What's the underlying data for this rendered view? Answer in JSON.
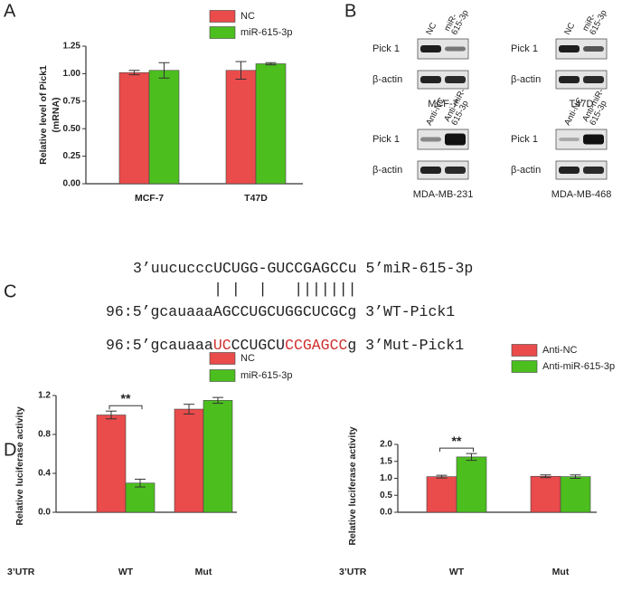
{
  "panel_labels": [
    "A",
    "B",
    "C",
    "D"
  ],
  "chart_data": [
    {
      "type": "bar",
      "ylabel": [
        "Relative level of Pick1",
        "(mRNA)"
      ],
      "categories": [
        "MCF-7",
        "T47D"
      ],
      "series": [
        {
          "name": "NC",
          "color": "#ea4b4b",
          "values": [
            1.01,
            1.03
          ],
          "errors": [
            0.02,
            0.08
          ]
        },
        {
          "name": "miR-615-3p",
          "color": "#4cbf1f",
          "values": [
            1.03,
            1.09
          ],
          "errors": [
            0.07,
            0.01
          ]
        }
      ],
      "ylim": [
        0,
        1.25
      ],
      "yticks": [
        {
          "value": 0,
          "label": "0.00"
        },
        0.25,
        {
          "value": 0.5,
          "label": "0.50"
        },
        0.75,
        {
          "value": 1,
          "label": "1.00"
        },
        1.25
      ]
    },
    {
      "type": "bar",
      "ylabel": [
        "Relative luciferase activity"
      ],
      "xlabel": "3’UTR",
      "categories": [
        "WT",
        "Mut"
      ],
      "significance": [
        "**",
        null
      ],
      "series": [
        {
          "name": "NC",
          "color": "#ea4b4b",
          "values": [
            1.0,
            1.06
          ],
          "errors": [
            0.04,
            0.05
          ]
        },
        {
          "name": "miR-615-3p",
          "color": "#4cbf1f",
          "values": [
            0.3,
            1.15
          ],
          "errors": [
            0.04,
            0.03
          ]
        }
      ],
      "ylim": [
        0,
        1.2
      ],
      "yticks": [
        {
          "value": 0,
          "label": "0.0"
        },
        0.4,
        0.8,
        1.2
      ]
    },
    {
      "type": "bar",
      "ylabel": [
        "Relative luciferase activity"
      ],
      "xlabel": "3’UTR",
      "categories": [
        "WT",
        "Mut"
      ],
      "significance": [
        "**",
        null
      ],
      "series": [
        {
          "name": "Anti-NC",
          "color": "#ea4b4b",
          "values": [
            1.05,
            1.06
          ],
          "errors": [
            0.04,
            0.04
          ]
        },
        {
          "name": "Anti-miR-615-3p",
          "color": "#4cbf1f",
          "values": [
            1.63,
            1.05
          ],
          "errors": [
            0.1,
            0.05
          ]
        }
      ],
      "ylim": [
        0,
        2
      ],
      "yticks": [
        {
          "value": 0,
          "label": "0.0"
        },
        0.5,
        {
          "value": 1,
          "label": "1.0"
        },
        1.5,
        {
          "value": 2,
          "label": "2.0"
        }
      ]
    }
  ],
  "panel_b": {
    "blots": [
      {
        "lanes": [
          [
            "NC"
          ],
          [
            "miR-",
            "615-3p"
          ]
        ],
        "rows": [
          "Pick 1",
          "β-actin"
        ],
        "cell": "MCF-7"
      },
      {
        "lanes": [
          [
            "NC"
          ],
          [
            "miR-",
            "615-3p"
          ]
        ],
        "rows": [
          "Pick 1",
          "β-actin"
        ],
        "cell": "T47D"
      },
      {
        "lanes": [
          [
            "Anti-NC"
          ],
          [
            "Anti-miR-",
            "615-3p"
          ]
        ],
        "rows": [
          "Pick 1",
          "β-actin"
        ],
        "cell": "MDA-MB-231"
      },
      {
        "lanes": [
          [
            "Anti-NC"
          ],
          [
            "Anti-miR-",
            "615-3p"
          ]
        ],
        "rows": [
          "Pick 1",
          "β-actin"
        ],
        "cell": "MDA-MB-468"
      }
    ]
  },
  "panel_c": {
    "lines": [
      [
        {
          "text": "3’uucucccUCUGG-GUCCGAGCCu 5’miR-615-3p"
        }
      ],
      [
        {
          "text": "         | |  |   |||||||"
        }
      ],
      [
        {
          "text": "96:5’gcauaaaAGCCUGCUGGCUCGCg 3’WT-Pick1"
        }
      ],
      [
        {
          "text": "96:5’gcauaaa"
        },
        {
          "text": "UC",
          "color": "#d0302f"
        },
        {
          "text": "CCUGCU"
        },
        {
          "text": "CCGAGCC",
          "color": "#d0302f"
        },
        {
          "text": "g 3’Mut-Pick1"
        }
      ]
    ]
  }
}
